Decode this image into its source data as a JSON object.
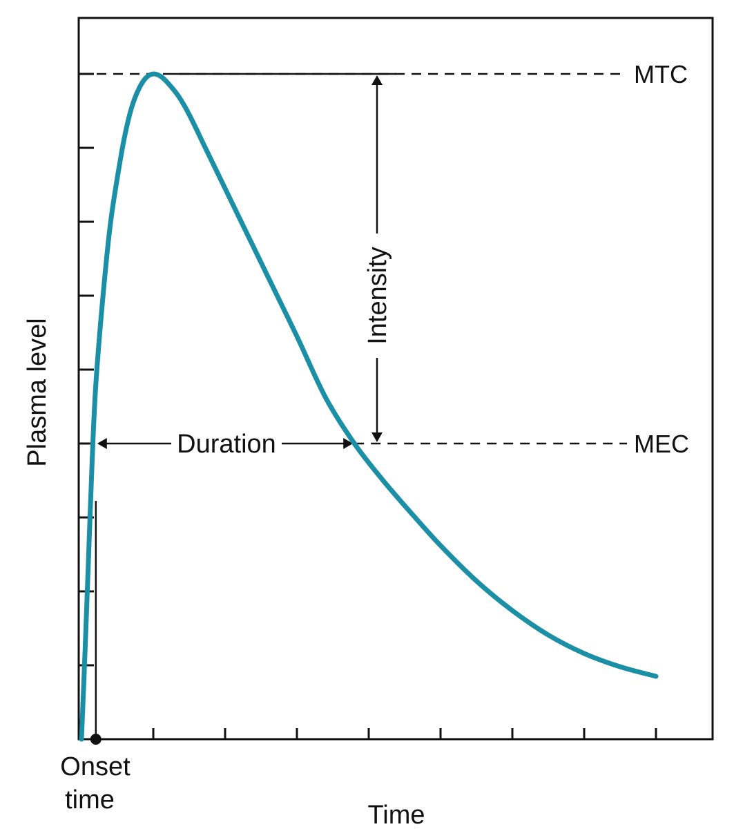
{
  "chart_data": {
    "type": "line",
    "title": "",
    "xlabel": "Time",
    "ylabel": "Plasma level",
    "xlim": [
      0,
      8.8
    ],
    "ylim": [
      0,
      9.9
    ],
    "grid": false,
    "colors": {
      "curve": "#1a8fa6",
      "ink": "#111111"
    },
    "series": [
      {
        "name": "",
        "x": [
          0,
          0.05,
          0.1,
          0.15,
          0.2,
          0.3,
          0.4,
          0.5,
          0.6,
          0.7,
          0.8,
          0.9,
          1.0,
          1.1,
          1.2,
          1.35,
          1.5,
          1.75,
          2.0,
          2.3,
          2.6,
          3.0,
          3.4,
          3.8,
          4.2,
          4.6,
          5.0,
          5.5,
          6.0,
          6.5,
          7.0,
          7.5,
          8.0
        ],
        "y": [
          0.0,
          1.2,
          2.5,
          3.8,
          4.8,
          6.0,
          6.95,
          7.6,
          8.15,
          8.55,
          8.8,
          8.95,
          9.0,
          8.97,
          8.88,
          8.7,
          8.45,
          7.95,
          7.45,
          6.85,
          6.25,
          5.45,
          4.62,
          4.0,
          3.5,
          3.05,
          2.62,
          2.14,
          1.74,
          1.41,
          1.16,
          0.98,
          0.85
        ]
      }
    ],
    "reference_lines": [
      {
        "label": "MTC",
        "y": 9.0
      },
      {
        "label": "MEC",
        "y": 4.0
      }
    ],
    "annotations": {
      "duration": {
        "label": "Duration",
        "x_start": 0.2,
        "x_end": 3.8,
        "y": 4.0
      },
      "intensity": {
        "label": "Intensity",
        "x": 3.8,
        "y_start": 4.0,
        "y_end": 9.0
      },
      "onset": {
        "label_line1": "Onset",
        "label_line2": "time",
        "x": 0.2
      }
    },
    "x_ticks": [
      1,
      2,
      3,
      4,
      5,
      6,
      7,
      8
    ],
    "y_ticks": [
      1,
      2,
      3,
      4,
      5,
      6,
      7,
      8,
      9
    ]
  }
}
